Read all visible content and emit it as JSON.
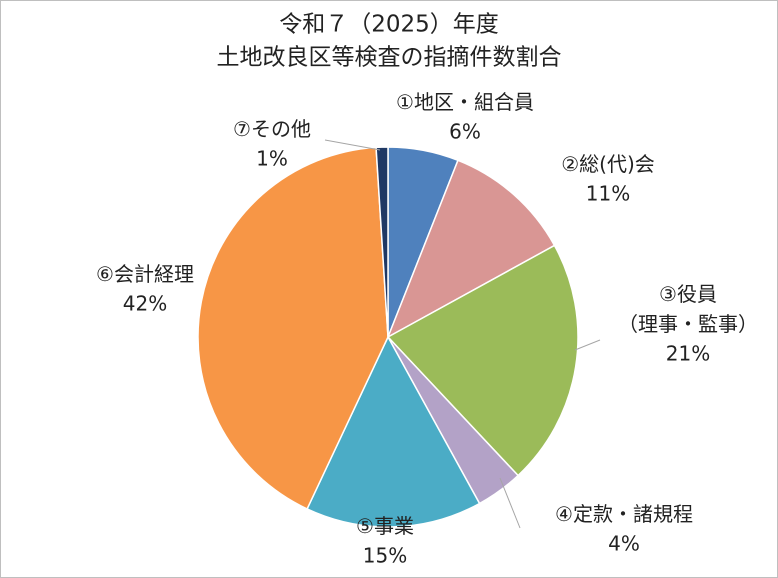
{
  "chart_data": {
    "type": "pie",
    "title": [
      "令和７（2025）年度",
      "土地改良区等検査の指摘件数割合"
    ],
    "categories": [
      "①地区・組合員",
      "②総(代)会",
      "③役員\n（理事・監事）",
      "④定款・諸規程",
      "⑤事業",
      "⑥会計経理",
      "⑦その他"
    ],
    "values": [
      6,
      11,
      21,
      4,
      15,
      42,
      1
    ],
    "value_labels": [
      "6%",
      "11%",
      "21%",
      "4%",
      "15%",
      "42%",
      "1%"
    ],
    "colors": [
      "#4f81bd",
      "#d99694",
      "#9bbb59",
      "#b3a2c7",
      "#4bacc6",
      "#f79646",
      "#1f3864"
    ]
  }
}
